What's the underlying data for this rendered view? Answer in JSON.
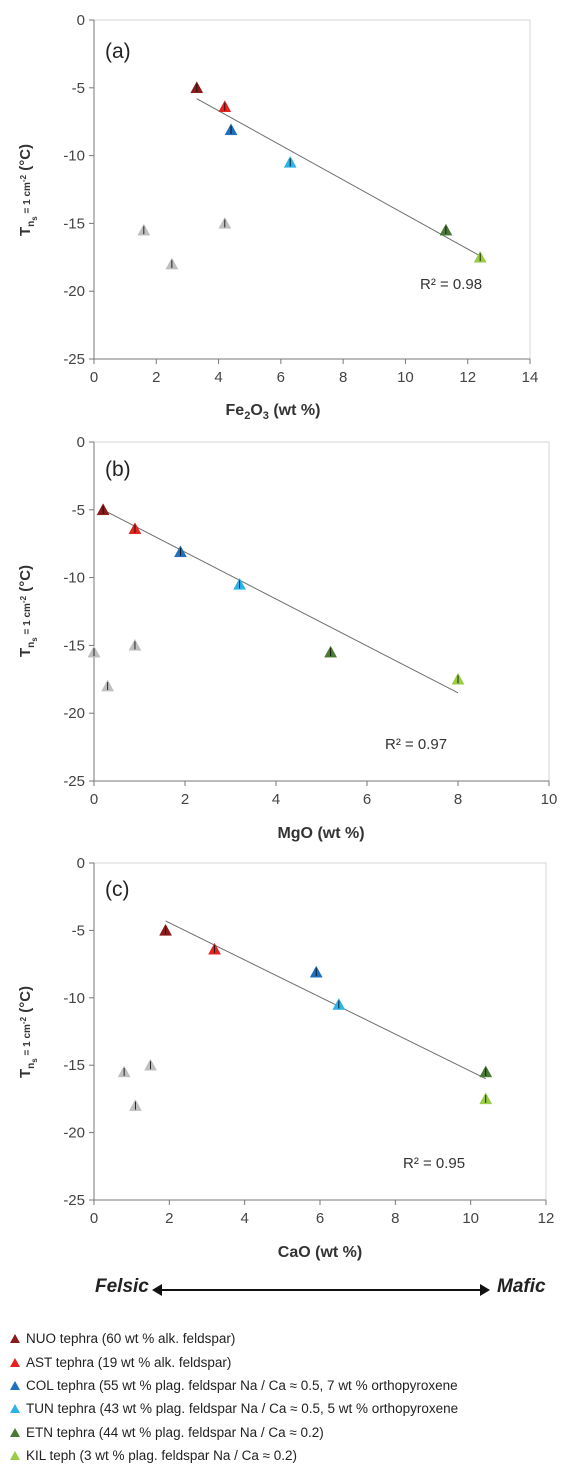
{
  "chart_data": [
    {
      "type": "scatter",
      "panel_label": "(a)",
      "xlabel_parts": [
        "Fe",
        "2",
        "O",
        "3",
        " (wt %)"
      ],
      "xlim": [
        0,
        14
      ],
      "ylim": [
        -25,
        0
      ],
      "xticks": [
        0,
        2,
        4,
        6,
        8,
        10,
        12,
        14
      ],
      "yticks": [
        0,
        -5,
        -10,
        -15,
        -20,
        -25
      ],
      "r2_text": "R² = 0.98",
      "trendline": {
        "x": [
          3.3,
          12.4
        ],
        "y": [
          -5.8,
          -17.4
        ]
      },
      "series": [
        {
          "name": "NUO tephra (60 wt % alk. feldspar)",
          "color": "#8b1a1a",
          "points": [
            [
              3.3,
              -5.0
            ]
          ]
        },
        {
          "name": "AST tephra (19 wt % alk. feldspar)",
          "color": "#e82020",
          "points": [
            [
              4.2,
              -6.4
            ]
          ]
        },
        {
          "name": "COL tephra (55 wt % plag. feldspar Na / Ca ≈ 0.5, 7 wt % orthopyroxene)",
          "color": "#1f6fbf",
          "points": [
            [
              4.4,
              -8.1
            ]
          ]
        },
        {
          "name": "TUN tephra (43 wt % plag. feldspar Na / Ca ≈ 0.5, 5 wt % orthopyroxene)",
          "color": "#2bb3ea",
          "points": [
            [
              6.3,
              -10.5
            ]
          ]
        },
        {
          "name": "ETN tephra (44 wt % plag. feldspar Na / Ca ≈ 0.2)",
          "color": "#4a7a35",
          "points": [
            [
              11.3,
              -15.5
            ]
          ]
        },
        {
          "name": "KIL teph (3 wt % plag. feldspar Na / Ca ≈ 0.2)",
          "color": "#99cc44",
          "points": [
            [
              12.4,
              -17.5
            ]
          ]
        },
        {
          "color": "#bfbfbf",
          "points": [
            [
              1.6,
              -15.5
            ],
            [
              2.5,
              -18.0
            ],
            [
              4.2,
              -15.0
            ]
          ]
        }
      ]
    },
    {
      "type": "scatter",
      "panel_label": "(b)",
      "xlabel_parts": [
        "MgO (wt %)"
      ],
      "xlim": [
        0,
        10
      ],
      "ylim": [
        -25,
        0
      ],
      "xticks": [
        0,
        2,
        4,
        6,
        8,
        10
      ],
      "yticks": [
        0,
        -5,
        -10,
        -15,
        -20,
        -25
      ],
      "r2_text": "R² = 0.97",
      "trendline": {
        "x": [
          0.2,
          8.0
        ],
        "y": [
          -5.0,
          -18.5
        ]
      },
      "series": [
        {
          "name": "NUO tephra (60 wt % alk. feldspar)",
          "color": "#8b1a1a",
          "points": [
            [
              0.2,
              -5.0
            ]
          ]
        },
        {
          "name": "AST tephra (19 wt % alk. feldspar)",
          "color": "#e82020",
          "points": [
            [
              0.9,
              -6.4
            ]
          ]
        },
        {
          "name": "COL tephra (55 wt % plag. feldspar Na / Ca ≈ 0.5, 7 wt % orthopyroxene)",
          "color": "#1f6fbf",
          "points": [
            [
              1.9,
              -8.1
            ]
          ]
        },
        {
          "name": "TUN tephra (43 wt % plag. feldspar Na / Ca ≈ 0.5, 5 wt % orthopyroxene)",
          "color": "#2bb3ea",
          "points": [
            [
              3.2,
              -10.5
            ]
          ]
        },
        {
          "name": "ETN tephra (44 wt % plag. feldspar Na / Ca ≈ 0.2)",
          "color": "#4a7a35",
          "points": [
            [
              5.2,
              -15.5
            ]
          ]
        },
        {
          "name": "KIL teph (3 wt % plag. feldspar Na / Ca ≈ 0.2)",
          "color": "#99cc44",
          "points": [
            [
              8.0,
              -17.5
            ]
          ]
        },
        {
          "color": "#bfbfbf",
          "points": [
            [
              0.0,
              -15.5
            ],
            [
              0.3,
              -18.0
            ],
            [
              0.9,
              -15.0
            ]
          ]
        }
      ]
    },
    {
      "type": "scatter",
      "panel_label": "(c)",
      "xlabel_parts": [
        "CaO (wt %)"
      ],
      "xlim": [
        0,
        12
      ],
      "ylim": [
        -25,
        0
      ],
      "xticks": [
        0,
        2,
        4,
        6,
        8,
        10,
        12
      ],
      "yticks": [
        0,
        -5,
        -10,
        -15,
        -20,
        -25
      ],
      "r2_text": "R² = 0.95",
      "trendline": {
        "x": [
          1.9,
          10.4
        ],
        "y": [
          -4.3,
          -16.0
        ]
      },
      "series": [
        {
          "name": "NUO tephra (60 wt % alk. feldspar)",
          "color": "#8b1a1a",
          "points": [
            [
              1.9,
              -5.0
            ]
          ]
        },
        {
          "name": "AST tephra (19 wt % alk. feldspar)",
          "color": "#e82020",
          "points": [
            [
              3.2,
              -6.4
            ]
          ]
        },
        {
          "name": "COL tephra (55 wt % plag. feldspar Na / Ca ≈ 0.5, 7 wt % orthopyroxene)",
          "color": "#1f6fbf",
          "points": [
            [
              5.9,
              -8.1
            ]
          ]
        },
        {
          "name": "TUN tephra (43 wt % plag. feldspar Na / Ca ≈ 0.5, 5 wt % orthopyroxene)",
          "color": "#2bb3ea",
          "points": [
            [
              6.5,
              -10.5
            ]
          ]
        },
        {
          "name": "ETN tephra (44 wt % plag. feldspar Na / Ca ≈ 0.2)",
          "color": "#4a7a35",
          "points": [
            [
              10.4,
              -15.5
            ]
          ]
        },
        {
          "name": "KIL teph (3 wt % plag. feldspar Na / Ca ≈ 0.2)",
          "color": "#99cc44",
          "points": [
            [
              10.4,
              -17.5
            ]
          ]
        },
        {
          "color": "#bfbfbf",
          "points": [
            [
              0.8,
              -15.5
            ],
            [
              1.1,
              -18.0
            ],
            [
              1.5,
              -15.0
            ]
          ]
        }
      ]
    }
  ],
  "ylabel_parts": [
    "T",
    "n",
    "s",
    " = 1 cm",
    "-2",
    " (°C)"
  ],
  "axis_labels": {
    "felsic": "Felsic",
    "mafic": "Mafic"
  },
  "legend": [
    {
      "label": "NUO tephra (60 wt % alk. feldspar)",
      "color": "#8b1a1a"
    },
    {
      "label": "AST tephra (19 wt % alk. feldspar)",
      "color": "#e82020"
    },
    {
      "label": "COL tephra (55 wt % plag. feldspar Na / Ca ≈ 0.5, 7 wt % orthopyroxene",
      "color": "#1f6fbf"
    },
    {
      "label": "TUN tephra (43 wt % plag. feldspar Na / Ca ≈ 0.5, 5 wt % orthopyroxene",
      "color": "#2bb3ea"
    },
    {
      "label": "ETN tephra (44 wt % plag. feldspar Na / Ca ≈ 0.2)",
      "color": "#4a7a35"
    },
    {
      "label": "KIL teph (3 wt % plag. feldspar Na / Ca ≈ 0.2)",
      "color": "#99cc44"
    }
  ]
}
